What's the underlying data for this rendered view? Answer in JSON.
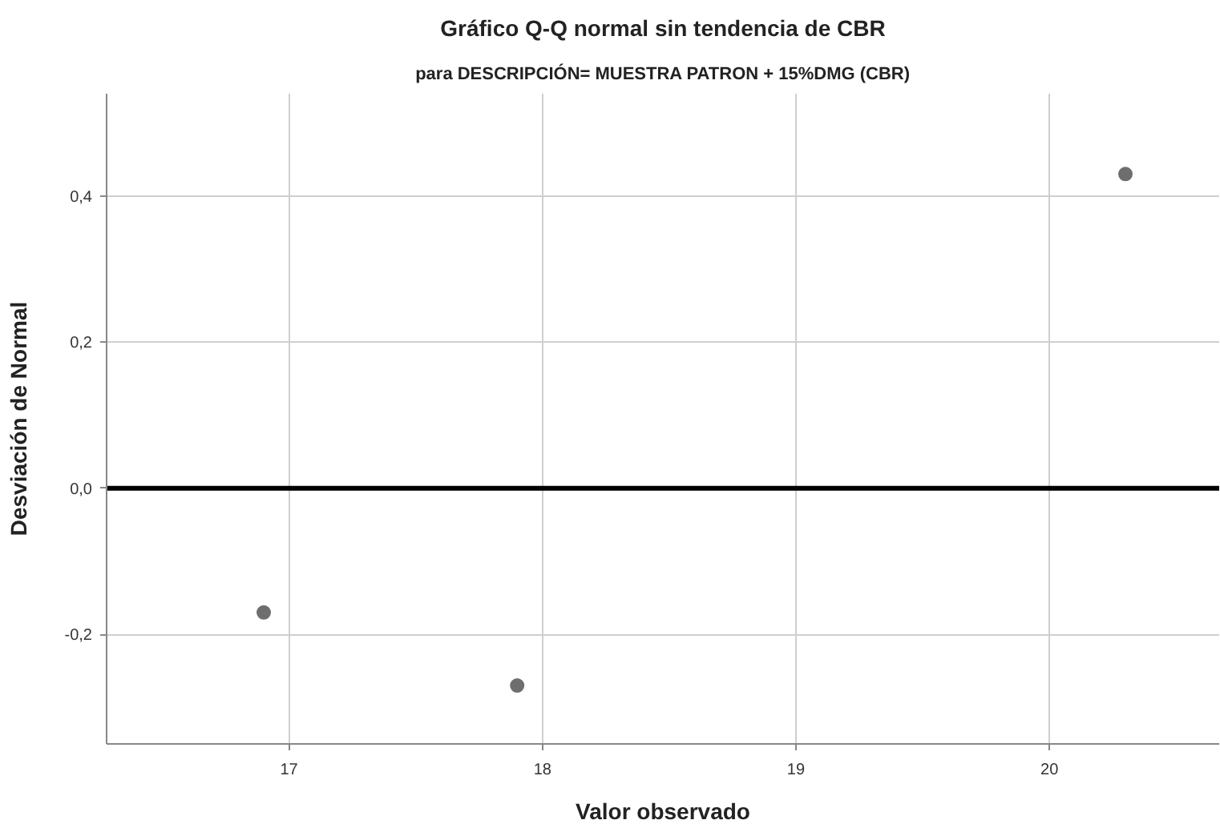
{
  "chart_data": {
    "type": "scatter",
    "title": "Gráfico Q-Q normal sin tendencia de CBR",
    "subtitle": "para DESCRIPCIÓN= MUESTRA PATRON + 15%DMG (CBR)",
    "xlabel": "Valor observado",
    "ylabel": "Desviación de Normal",
    "x": [
      16.9,
      17.9,
      20.3
    ],
    "series": [
      {
        "color": "#6e6e6e",
        "values": [
          -0.17,
          -0.27,
          0.43
        ]
      }
    ],
    "xlim": [
      16.28,
      20.67
    ],
    "ylim": [
      -0.35,
      0.54
    ],
    "xticks": [
      17,
      18,
      19,
      20
    ],
    "yticks": [
      {
        "value": -0.2,
        "label": "-0,2"
      },
      {
        "value": 0.0,
        "label": "0,0"
      },
      {
        "value": 0.2,
        "label": "0,2"
      },
      {
        "value": 0.4,
        "label": "0,4"
      }
    ],
    "ref_lines": [
      {
        "axis": "y",
        "value": 0,
        "color": "#000000"
      }
    ],
    "grid": true,
    "marker": "circle"
  }
}
